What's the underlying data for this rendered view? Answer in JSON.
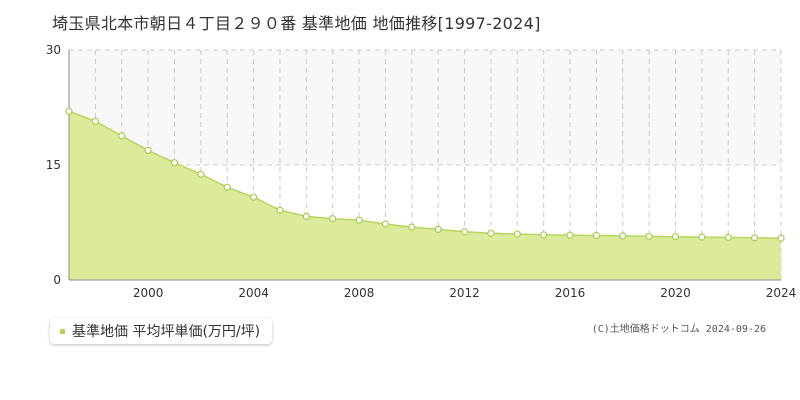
{
  "title": "埼玉県北本市朝日４丁目２９０番 基準地価 地価推移[1997-2024]",
  "legend": {
    "label": "基準地価 平均坪単価(万円/坪)"
  },
  "credit": "(C)土地価格ドットコム 2024-09-26",
  "colors": {
    "area_fill": "#dbeb9b",
    "line": "#b5d65c",
    "marker_stroke": "#a8cc52",
    "shade_band": "#f8f7f9",
    "grid": "#cccccc",
    "axis": "#888888"
  },
  "chart_data": {
    "type": "area",
    "x": [
      1997,
      1998,
      1999,
      2000,
      2001,
      2002,
      2003,
      2004,
      2005,
      2006,
      2007,
      2008,
      2009,
      2010,
      2011,
      2012,
      2013,
      2014,
      2015,
      2016,
      2017,
      2018,
      2019,
      2020,
      2021,
      2022,
      2023,
      2024
    ],
    "series": [
      {
        "name": "基準地価 平均坪単価(万円/坪)",
        "values": [
          22.0,
          20.7,
          18.8,
          16.9,
          15.3,
          13.8,
          12.1,
          10.8,
          9.1,
          8.3,
          8.0,
          7.8,
          7.3,
          6.9,
          6.6,
          6.3,
          6.1,
          6.0,
          5.9,
          5.85,
          5.8,
          5.75,
          5.7,
          5.65,
          5.6,
          5.55,
          5.5,
          5.45
        ]
      }
    ],
    "xlim": [
      1997,
      2024
    ],
    "ylim": [
      0,
      30
    ],
    "yticks": [
      0,
      15,
      30
    ],
    "xticks": [
      2000,
      2004,
      2008,
      2012,
      2016,
      2020,
      2024
    ],
    "grid": true,
    "legend_position": "bottom-left"
  }
}
